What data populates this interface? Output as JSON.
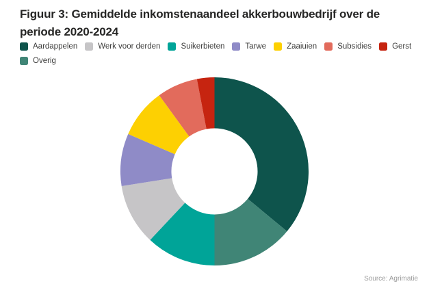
{
  "header": {
    "title_line1": "Figuur 3: Gemiddelde inkomstenaandeel akkerbouwbedrijf over de",
    "title_line2": "periode 2020-2024"
  },
  "footer": {
    "source": "Source: Agrimatie"
  },
  "colors": {
    "background": "#ffffff",
    "title_text": "#262625",
    "legend_text": "#3e3e3d",
    "source_text": "#9b9b9b"
  },
  "chart_data": {
    "type": "pie",
    "subtype": "donut",
    "title": "Figuur 3: Gemiddelde inkomstenaandeel akkerbouwbedrijf over de periode 2020-2024",
    "units": "percent share",
    "legend_position": "top",
    "start_angle_deg": 0,
    "inner_radius_ratio": 0.46,
    "slices": [
      {
        "label": "Aardappelen",
        "value": 36,
        "color": "#0e544c"
      },
      {
        "label": "Werk voor derden",
        "value": 10.5,
        "color": "#c6c5c7"
      },
      {
        "label": "Suikerbieten",
        "value": 12,
        "color": "#00a498"
      },
      {
        "label": "Tarwe",
        "value": 9,
        "color": "#8f8bc7"
      },
      {
        "label": "Zaaiuien",
        "value": 8.5,
        "color": "#fdd002"
      },
      {
        "label": "Subsidies",
        "value": 7,
        "color": "#e26b5c"
      },
      {
        "label": "Gerst",
        "value": 3,
        "color": "#c62410"
      },
      {
        "label": "Overig",
        "value": 14,
        "color": "#408576"
      }
    ],
    "draw_order": [
      0,
      7,
      2,
      1,
      3,
      4,
      5,
      6
    ]
  }
}
